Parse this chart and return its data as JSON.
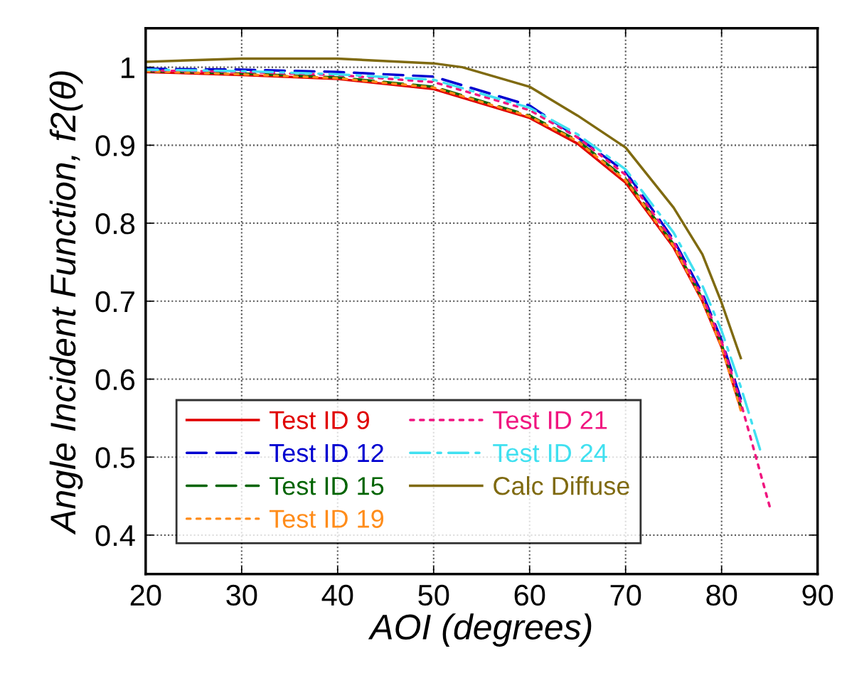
{
  "chart_data": {
    "type": "line",
    "xlabel": "AOI (degrees)",
    "ylabel": "Angle Incident Function, f2(θ)",
    "xlim": [
      20,
      90
    ],
    "ylim": [
      0.35,
      1.05
    ],
    "xticks": [
      20,
      30,
      40,
      50,
      60,
      70,
      80,
      90
    ],
    "yticks": [
      0.4,
      0.5,
      0.6,
      0.7,
      0.8,
      0.9,
      1
    ],
    "grid": true,
    "legend": "bottom left",
    "series": [
      {
        "name": "Test ID 9",
        "color": "#e00000",
        "line_style": "solid",
        "x": [
          20,
          30,
          40,
          50,
          60,
          65,
          70,
          75,
          78,
          80,
          82
        ],
        "values": [
          0.994,
          0.99,
          0.985,
          0.972,
          0.935,
          0.902,
          0.852,
          0.769,
          0.7,
          0.641,
          0.562
        ]
      },
      {
        "name": "Test ID 12",
        "color": "#0000d0",
        "line_style": "dashed",
        "x": [
          20,
          30,
          40,
          50,
          60,
          65,
          70,
          75,
          78,
          80,
          82
        ],
        "values": [
          0.998,
          0.997,
          0.994,
          0.988,
          0.951,
          0.91,
          0.866,
          0.779,
          0.71,
          0.65,
          0.575
        ]
      },
      {
        "name": "Test ID 15",
        "color": "#006400",
        "line_style": "dashed",
        "x": [
          20,
          30,
          40,
          50,
          60,
          65,
          70,
          75,
          78,
          80,
          82
        ],
        "values": [
          0.995,
          0.992,
          0.987,
          0.975,
          0.938,
          0.906,
          0.857,
          0.773,
          0.703,
          0.645,
          0.565
        ]
      },
      {
        "name": "Test ID 19",
        "color": "#ff8c1a",
        "line_style": "dotted",
        "x": [
          20,
          30,
          40,
          50,
          60,
          65,
          70,
          75,
          78,
          80,
          82
        ],
        "values": [
          0.995,
          0.991,
          0.986,
          0.974,
          0.937,
          0.905,
          0.855,
          0.771,
          0.701,
          0.642,
          0.56
        ]
      },
      {
        "name": "Test ID 21",
        "color": "#f0147f",
        "line_style": "dotted",
        "x": [
          20,
          30,
          40,
          50,
          60,
          65,
          70,
          75,
          78,
          80,
          82,
          85
        ],
        "values": [
          0.996,
          0.994,
          0.99,
          0.981,
          0.945,
          0.91,
          0.862,
          0.776,
          0.706,
          0.648,
          0.57,
          0.437
        ]
      },
      {
        "name": "Test ID 24",
        "color": "#40e0f0",
        "line_style": "dashdot",
        "x": [
          20,
          30,
          40,
          50,
          60,
          65,
          70,
          75,
          78,
          80,
          82,
          84
        ],
        "values": [
          0.997,
          0.995,
          0.991,
          0.984,
          0.948,
          0.914,
          0.869,
          0.788,
          0.72,
          0.662,
          0.59,
          0.51
        ]
      },
      {
        "name": "Calc Diffuse",
        "color": "#7f6a10",
        "line_style": "solid",
        "x": [
          20,
          30,
          40,
          50,
          53,
          60,
          65,
          70,
          75,
          78,
          80,
          82
        ],
        "values": [
          1.007,
          1.011,
          1.011,
          1.005,
          1.0,
          0.975,
          0.938,
          0.897,
          0.82,
          0.76,
          0.698,
          0.627
        ]
      }
    ]
  }
}
